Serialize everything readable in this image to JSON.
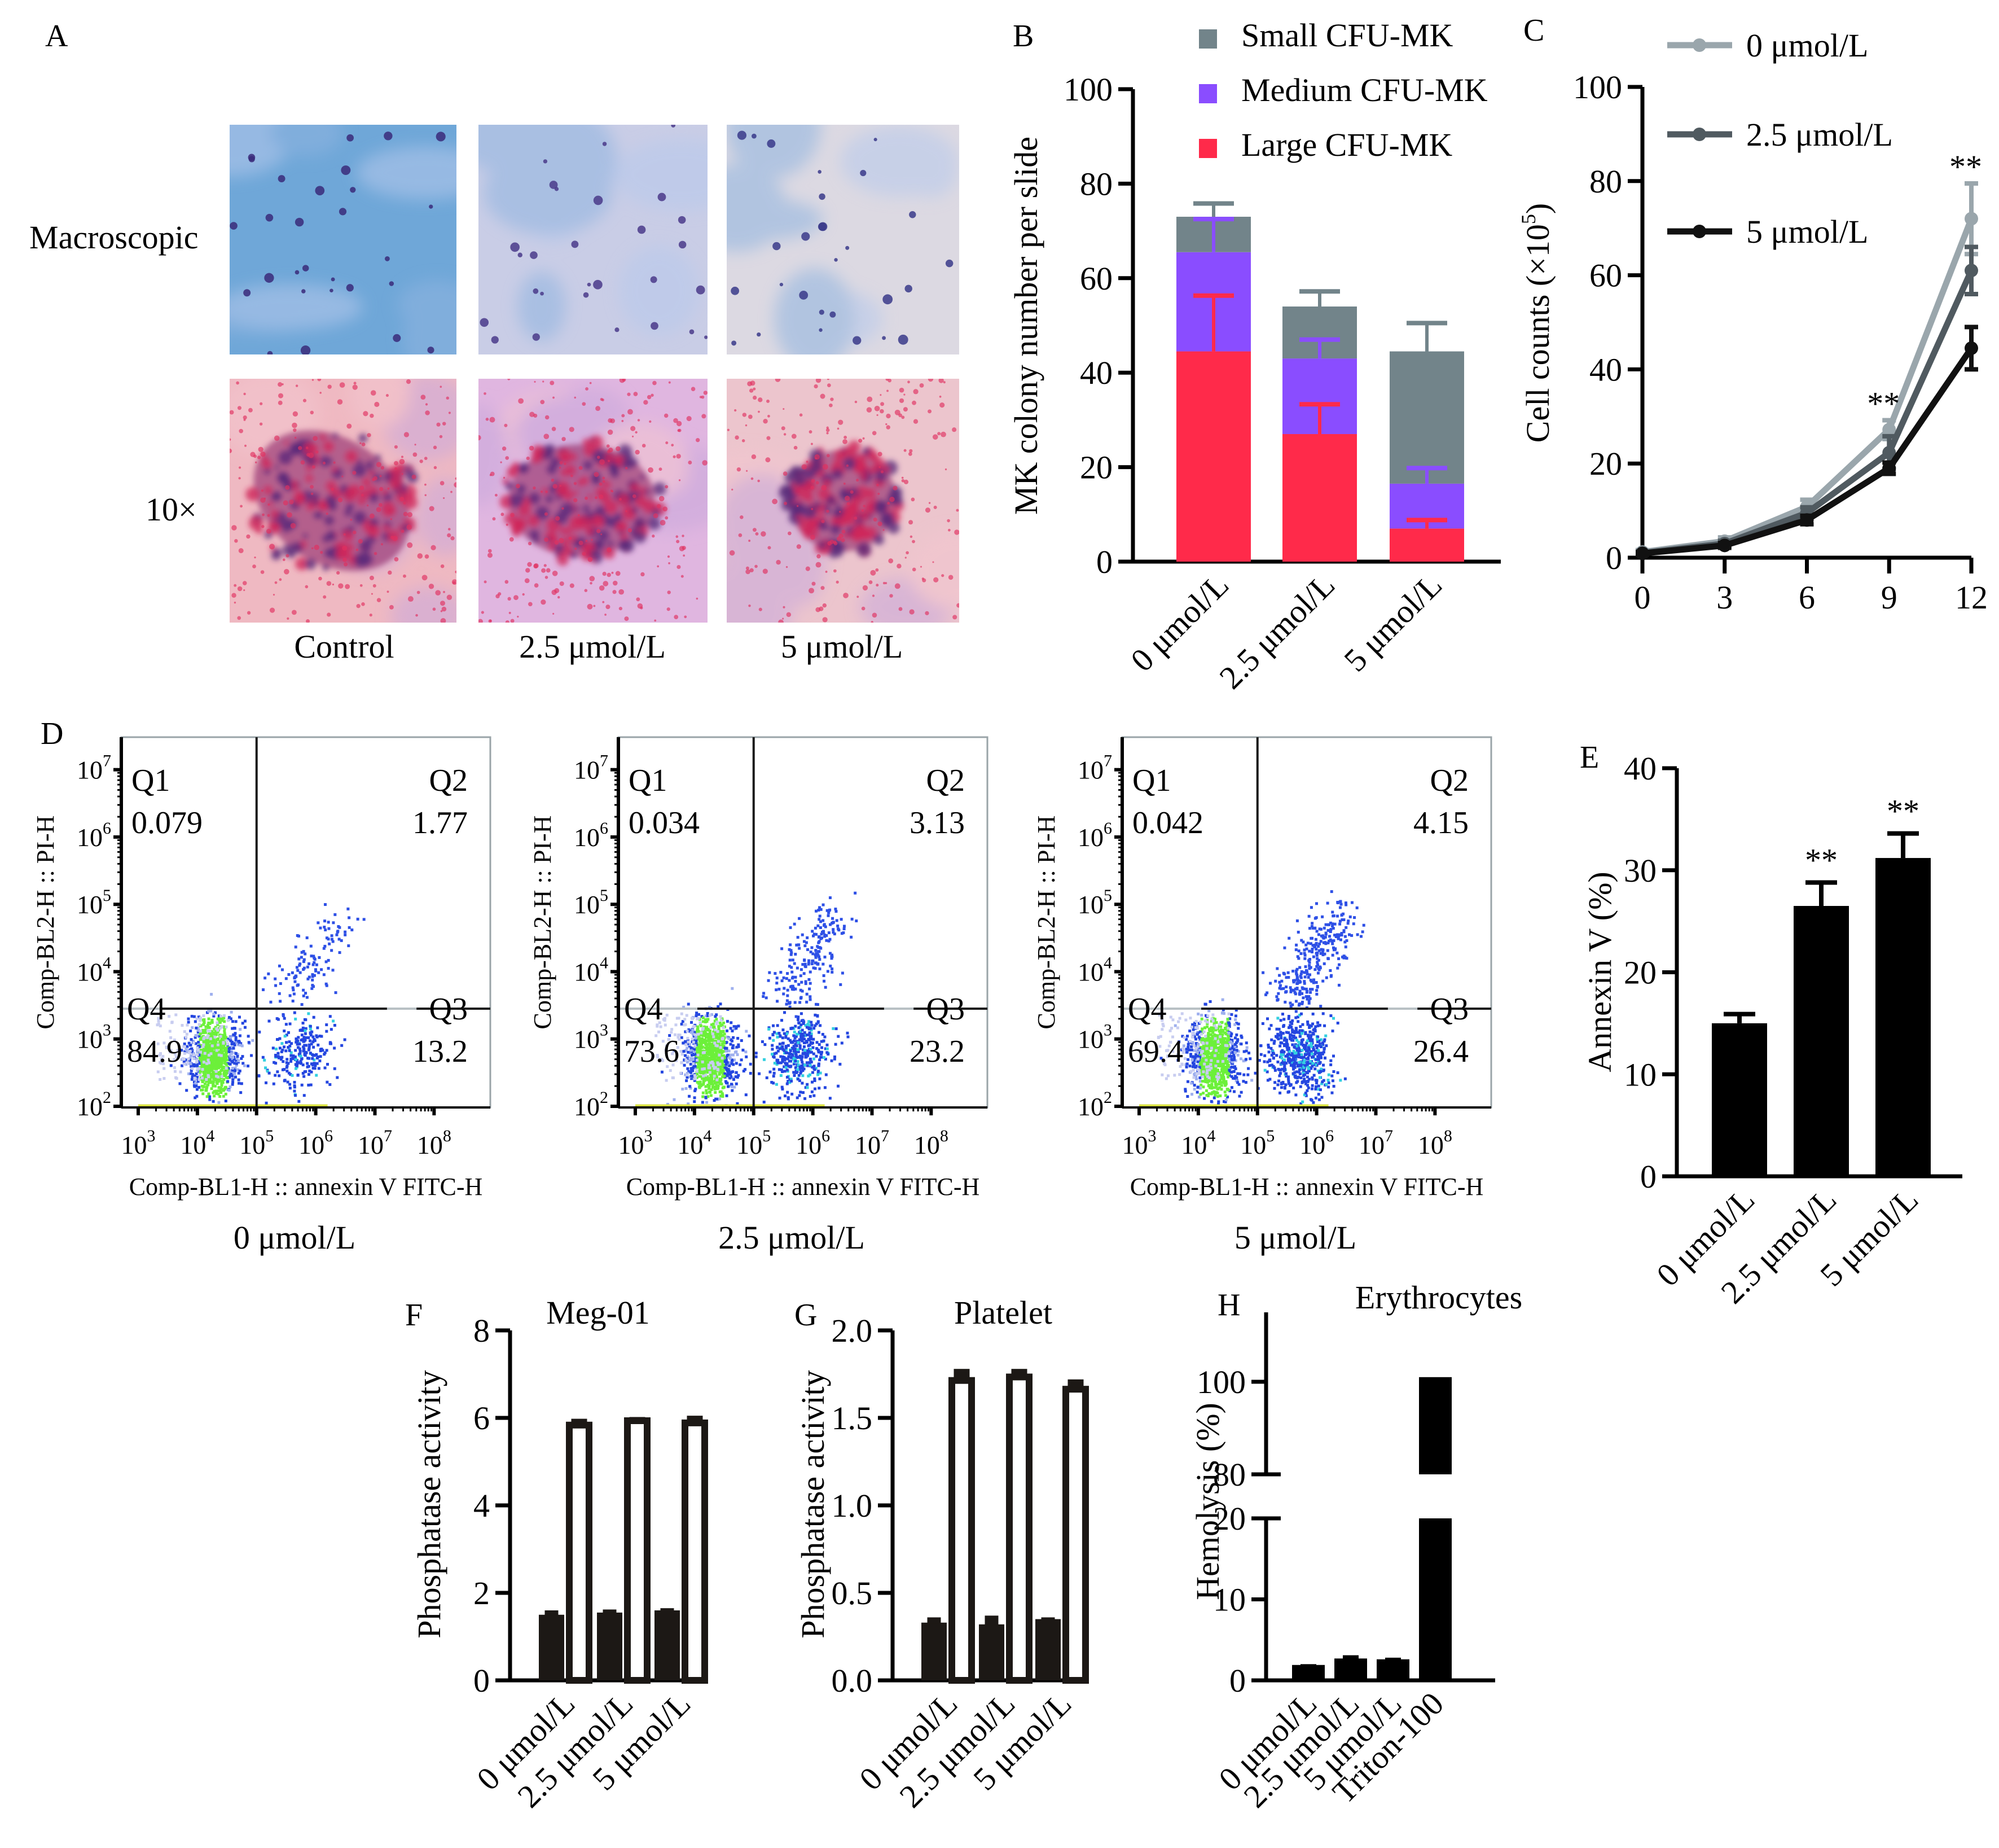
{
  "panels": {
    "A": {
      "letter": "A",
      "row_labels": [
        "Macroscopic",
        "10×"
      ],
      "column_labels": [
        "Control",
        "2.5 μmol/L",
        "5 μmol/L"
      ],
      "images": [
        {
          "row": "Macroscopic",
          "column": "Control",
          "tone": "#6fa7d8",
          "dots": "#3a2a7a"
        },
        {
          "row": "Macroscopic",
          "column": "2.5 μmol/L",
          "tone": "#c9cde6",
          "dots": "#4a3a8a"
        },
        {
          "row": "Macroscopic",
          "column": "5 μmol/L",
          "tone": "#dcd9e2",
          "dots": "#3a3a8a"
        },
        {
          "row": "10×",
          "column": "Control",
          "tone": "#efb9c2",
          "dots": "#7a2a6a"
        },
        {
          "row": "10×",
          "column": "2.5 μmol/L",
          "tone": "#e0b6e0",
          "dots": "#9a2a6a"
        },
        {
          "row": "10×",
          "column": "5 μmol/L",
          "tone": "#ecc5cd",
          "dots": "#6a1a5a"
        }
      ]
    },
    "B": {
      "letter": "B"
    },
    "C": {
      "letter": "C"
    },
    "D": {
      "letter": "D",
      "xlabel": "Comp-BL1-H :: annexin V FITC-H",
      "ylabel": "Comp-BL2-H :: PI-H",
      "x_ticks": [
        "3",
        "4",
        "5",
        "6",
        "7",
        "8"
      ],
      "y_ticks": [
        "7",
        "6",
        "5",
        "4",
        "3",
        "2"
      ],
      "tick_base": "10",
      "plots": [
        {
          "condition": "0 μmol/L",
          "Q1": "0.079",
          "Q2": "1.77",
          "Q3": "13.2",
          "Q4": "84.9"
        },
        {
          "condition": "2.5 μmol/L",
          "Q1": "0.034",
          "Q2": "3.13",
          "Q3": "23.2",
          "Q4": "73.6"
        },
        {
          "condition": "5 μmol/L",
          "Q1": "0.042",
          "Q2": "4.15",
          "Q3": "26.4",
          "Q4": "69.4"
        }
      ],
      "quadrant_names": [
        "Q1",
        "Q2",
        "Q3",
        "Q4"
      ]
    },
    "E": {
      "letter": "E"
    },
    "F": {
      "letter": "F"
    },
    "G": {
      "letter": "G"
    },
    "H": {
      "letter": "H"
    }
  },
  "chart_data": [
    {
      "id": "B",
      "type": "bar",
      "stacked": true,
      "title": "",
      "xlabel": "",
      "ylabel": "MK colony number per slide",
      "categories": [
        "0 μmol/L",
        "2.5 μmol/L",
        "5 μmol/L"
      ],
      "ylim": [
        0,
        100
      ],
      "yticks": [
        0,
        20,
        40,
        60,
        80,
        100
      ],
      "legend_position": "top-right",
      "series": [
        {
          "name": "Large CFU-MK",
          "color": "#ff2a4a",
          "values": [
            44.5,
            27,
            7
          ],
          "error_top": [
            56.3,
            33.3,
            8.8
          ]
        },
        {
          "name": "Medium CFU-MK",
          "color": "#8a4dff",
          "values": [
            21,
            16,
            9.5
          ],
          "error_top": [
            72.5,
            47,
            19.8
          ]
        },
        {
          "name": "Small CFU-MK",
          "color": "#72848a",
          "values": [
            7.5,
            11,
            28
          ],
          "error_top": [
            75.8,
            57.2,
            50.5
          ]
        }
      ],
      "legend_order": [
        "Small CFU-MK",
        "Medium CFU-MK",
        "Large CFU-MK"
      ]
    },
    {
      "id": "C",
      "type": "line",
      "title": "",
      "xlabel": "",
      "ylabel": "Cell counts (×10⁵)",
      "ylabel_main": "Cell counts (×10",
      "ylabel_sup": "5",
      "ylabel_end": ")",
      "x": [
        0,
        3,
        6,
        9,
        12
      ],
      "xlim": [
        0,
        12
      ],
      "ylim": [
        0,
        100
      ],
      "yticks": [
        0,
        20,
        40,
        60,
        80,
        100
      ],
      "xticks": [
        0,
        3,
        6,
        9,
        12
      ],
      "legend_position": "top-left",
      "series": [
        {
          "name": "0 μmol/L",
          "color": "#9aa6ac",
          "values": [
            1.2,
            3.5,
            10.8,
            27.2,
            72
          ],
          "error": [
            0.4,
            0.8,
            1.5,
            2.0,
            7.5
          ]
        },
        {
          "name": "2.5 μmol/L",
          "color": "#505a60",
          "values": [
            1.0,
            3.0,
            9.5,
            22.3,
            61
          ],
          "error": [
            0.3,
            0.6,
            1.2,
            3.5,
            5.0
          ]
        },
        {
          "name": "5 μmol/L",
          "color": "#111111",
          "values": [
            0.9,
            2.6,
            8.0,
            19.0,
            44.5
          ],
          "error": [
            0.3,
            0.5,
            0.9,
            1.2,
            4.5
          ]
        }
      ],
      "annotations": [
        {
          "x": 9,
          "text": "**"
        },
        {
          "x": 12,
          "text": "**"
        }
      ]
    },
    {
      "id": "E",
      "type": "bar",
      "title": "",
      "xlabel": "",
      "ylabel": "Annexin V (%)",
      "categories": [
        "0 μmol/L",
        "2.5 μmol/L",
        "5 μmol/L"
      ],
      "values": [
        15.0,
        26.5,
        31.2
      ],
      "error_top": [
        15.9,
        28.8,
        33.6
      ],
      "ylim": [
        0,
        40
      ],
      "yticks": [
        0,
        10,
        20,
        30,
        40
      ],
      "color": "#000000",
      "annotations": [
        "",
        "**",
        "**"
      ]
    },
    {
      "id": "F",
      "type": "bar",
      "title": "Meg-01",
      "xlabel": "",
      "ylabel": "Phosphatase activity",
      "categories": [
        "0 μmol/L",
        "2.5 μmol/L",
        "5 μmol/L"
      ],
      "series": [
        {
          "name": "filled",
          "style": "filled",
          "values": [
            1.5,
            1.55,
            1.6
          ],
          "error_top": [
            1.6,
            1.62,
            1.65
          ]
        },
        {
          "name": "open",
          "style": "open",
          "values": [
            5.9,
            6.0,
            5.95
          ],
          "error_top": [
            5.98,
            6.02,
            6.05
          ]
        }
      ],
      "ylim": [
        0,
        8
      ],
      "yticks": [
        0,
        2,
        4,
        6,
        8
      ]
    },
    {
      "id": "G",
      "type": "bar",
      "title": "Platelet",
      "xlabel": "",
      "ylabel": "Phosphatase activity",
      "categories": [
        "0 μmol/L",
        "2.5 μmol/L",
        "5 μmol/L"
      ],
      "series": [
        {
          "name": "filled",
          "style": "filled",
          "values": [
            0.33,
            0.32,
            0.35
          ],
          "error_top": [
            0.36,
            0.37,
            0.36
          ]
        },
        {
          "name": "open",
          "style": "open",
          "values": [
            1.73,
            1.75,
            1.68
          ],
          "error_top": [
            1.78,
            1.78,
            1.72
          ]
        }
      ],
      "ylim": [
        0,
        2.0
      ],
      "yticks": [
        0.0,
        0.5,
        1.0,
        1.5,
        2.0
      ],
      "ytick_labels": [
        "0.0",
        "0.5",
        "1.0",
        "1.5",
        "2.0"
      ]
    },
    {
      "id": "H",
      "type": "bar",
      "title": "Erythrocytes",
      "xlabel": "",
      "ylabel": "Hemolysis (%)",
      "categories": [
        "0 μmol/L",
        "2.5 μmol/L",
        "5 μmol/L",
        "Triton-100"
      ],
      "values": [
        1.9,
        2.7,
        2.6,
        101
      ],
      "error_top": [
        2.0,
        3.1,
        2.8,
        101
      ],
      "broken_axis": {
        "lower": [
          0,
          20
        ],
        "upper": [
          80,
          110
        ]
      },
      "yticks": [
        0,
        10,
        20,
        80,
        100
      ],
      "color": "#000000"
    }
  ]
}
